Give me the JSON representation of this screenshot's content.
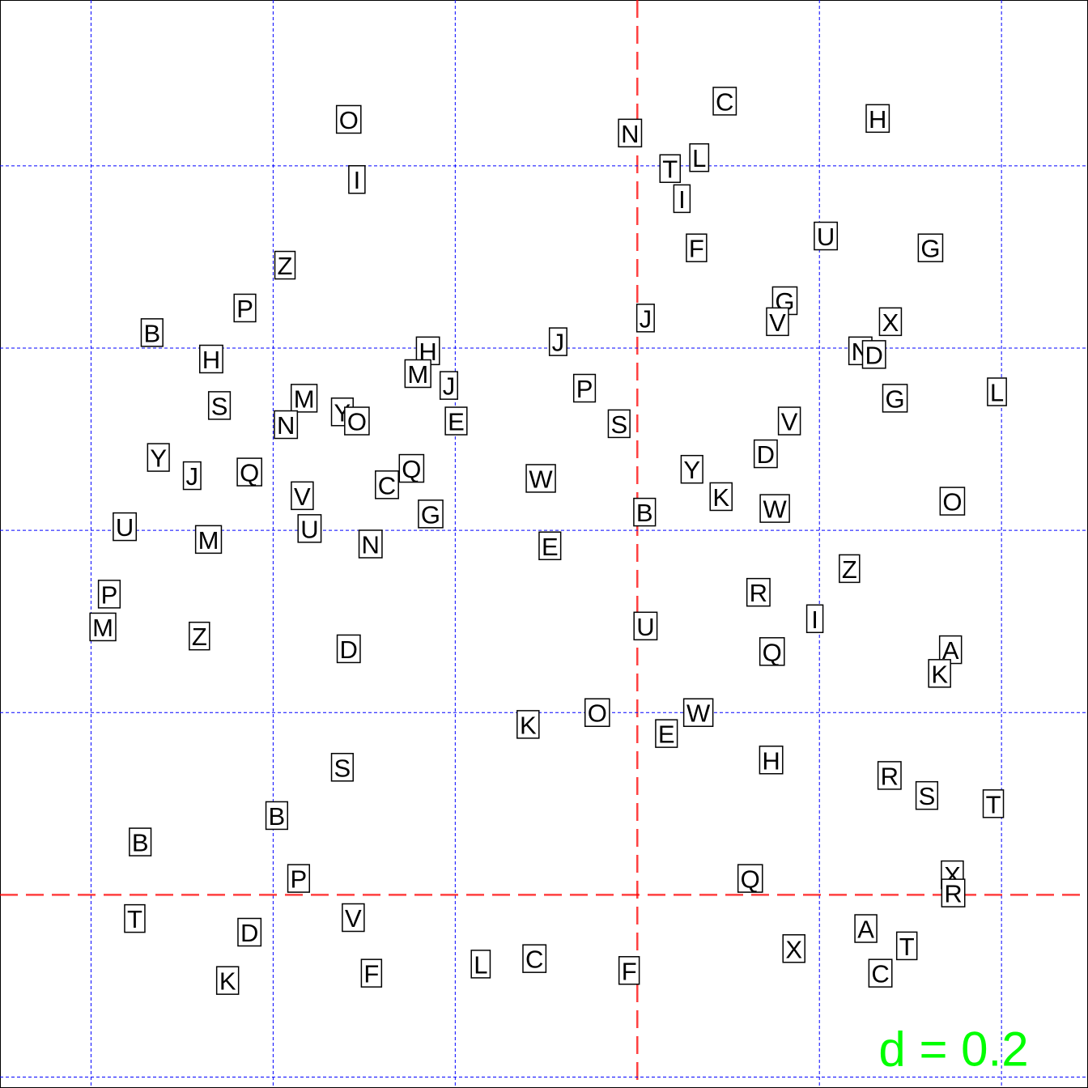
{
  "chart_data": {
    "type": "scatter",
    "annotation": "d = 0.2",
    "annotation_color": "#00ff00",
    "xlim": [
      -0.7,
      0.495
    ],
    "ylim": [
      -0.212,
      0.982
    ],
    "xgrid": [
      -0.6,
      -0.4,
      -0.2,
      0,
      0.2,
      0.4
    ],
    "ygrid": [
      -0.2,
      0,
      0.2,
      0.4,
      0.6,
      0.8
    ],
    "grid_color": "#0000ff",
    "origin_color": "#ff0000",
    "labels": [
      "O",
      "I",
      "N",
      "C",
      "H",
      "T",
      "L",
      "I",
      "F",
      "U",
      "G",
      "Z",
      "P",
      "B",
      "H",
      "J",
      "G",
      "V",
      "X",
      "N",
      "D",
      "H",
      "J",
      "M",
      "J",
      "P",
      "S",
      "M",
      "Y",
      "O",
      "N",
      "E",
      "S",
      "G",
      "L",
      "V",
      "D",
      "Y",
      "J",
      "Q",
      "Q",
      "C",
      "V",
      "W",
      "Y",
      "K",
      "W",
      "B",
      "O",
      "G",
      "U",
      "M",
      "U",
      "N",
      "E",
      "Z",
      "R",
      "I",
      "P",
      "M",
      "Z",
      "D",
      "U",
      "Q",
      "A",
      "K",
      "K",
      "O",
      "W",
      "E",
      "H",
      "S",
      "R",
      "S",
      "T",
      "B",
      "B",
      "P",
      "Q",
      "X",
      "R",
      "T",
      "V",
      "D",
      "A",
      "T",
      "X",
      "K",
      "F",
      "L",
      "C",
      "F",
      "C"
    ],
    "x": [
      -0.317,
      -0.308,
      -0.008,
      0.096,
      0.264,
      0.036,
      0.068,
      0.049,
      0.065,
      0.207,
      0.322,
      -0.387,
      -0.431,
      -0.533,
      -0.468,
      0.009,
      0.162,
      0.154,
      0.278,
      0.245,
      0.26,
      -0.23,
      -0.087,
      -0.241,
      -0.207,
      -0.058,
      -0.459,
      -0.366,
      -0.324,
      -0.308,
      -0.386,
      -0.199,
      -0.02,
      0.283,
      0.395,
      0.167,
      0.141,
      -0.526,
      -0.489,
      -0.426,
      -0.248,
      -0.275,
      -0.368,
      -0.106,
      0.06,
      0.092,
      0.151,
      0.008,
      0.346,
      -0.227,
      -0.563,
      -0.471,
      -0.36,
      -0.293,
      -0.096,
      0.233,
      0.133,
      0.195,
      -0.58,
      -0.587,
      -0.481,
      -0.317,
      0.009,
      0.148,
      0.344,
      0.332,
      -0.12,
      -0.044,
      0.067,
      0.032,
      0.147,
      -0.324,
      0.277,
      0.318,
      0.391,
      -0.396,
      -0.546,
      -0.372,
      0.124,
      0.346,
      0.347,
      -0.552,
      -0.312,
      -0.426,
      0.251,
      0.296,
      0.172,
      -0.45,
      -0.292,
      -0.172,
      -0.113,
      -0.009,
      0.267
    ],
    "y": [
      0.851,
      0.785,
      0.836,
      0.871,
      0.852,
      0.797,
      0.809,
      0.764,
      0.71,
      0.723,
      0.71,
      0.691,
      0.644,
      0.617,
      0.588,
      0.633,
      0.652,
      0.629,
      0.629,
      0.597,
      0.593,
      0.597,
      0.607,
      0.572,
      0.559,
      0.556,
      0.537,
      0.545,
      0.53,
      0.52,
      0.516,
      0.52,
      0.517,
      0.545,
      0.552,
      0.52,
      0.484,
      0.48,
      0.46,
      0.464,
      0.468,
      0.45,
      0.438,
      0.457,
      0.467,
      0.437,
      0.424,
      0.42,
      0.432,
      0.418,
      0.404,
      0.39,
      0.402,
      0.385,
      0.383,
      0.358,
      0.332,
      0.303,
      0.33,
      0.294,
      0.284,
      0.27,
      0.295,
      0.267,
      0.269,
      0.243,
      0.187,
      0.2,
      0.2,
      0.177,
      0.148,
      0.14,
      0.131,
      0.109,
      0.1,
      0.087,
      0.058,
      0.018,
      0.018,
      0.022,
      0.002,
      -0.026,
      -0.025,
      -0.041,
      -0.037,
      -0.056,
      -0.059,
      -0.094,
      -0.086,
      -0.076,
      -0.07,
      -0.083,
      -0.086
    ]
  }
}
